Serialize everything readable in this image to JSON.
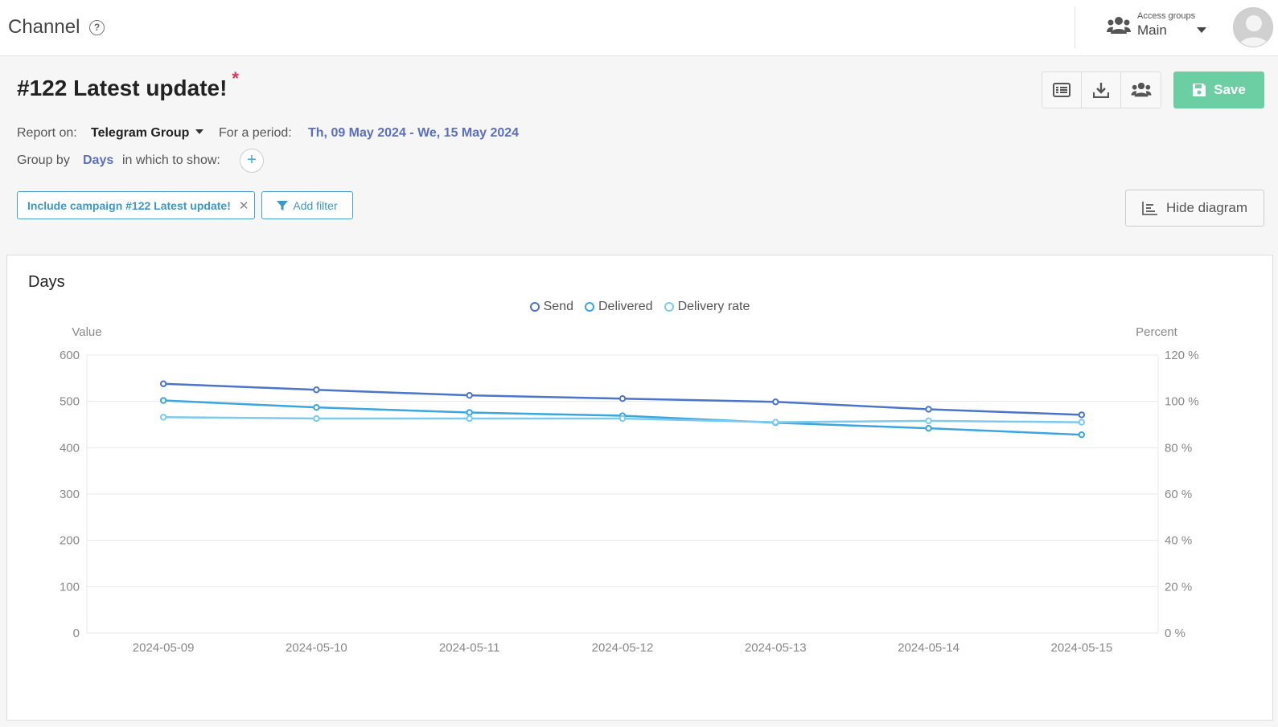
{
  "header": {
    "app_title": "Channel",
    "access_groups_label": "Access groups",
    "access_groups_value": "Main"
  },
  "report": {
    "title": "#122 Latest update!",
    "required_mark": "*",
    "save_label": "Save",
    "report_on_label": "Report on:",
    "report_on_value": "Telegram Group",
    "period_label": "For a period:",
    "period_value": "Th, 09 May 2024 - We, 15 May 2024",
    "group_by_label": "Group by",
    "group_by_value": "Days",
    "show_label": "in which to show:",
    "include_prefix": "Include campaign",
    "include_value": "#122 Latest update!",
    "add_filter_label": "Add filter",
    "hide_diagram_label": "Hide diagram"
  },
  "chart_data": {
    "type": "line",
    "title": "Days",
    "categories": [
      "2024-05-09",
      "2024-05-10",
      "2024-05-11",
      "2024-05-12",
      "2024-05-13",
      "2024-05-14",
      "2024-05-15"
    ],
    "ylabel": "Value",
    "y2label": "Percent",
    "ylim": [
      0,
      600
    ],
    "y2lim": [
      0,
      120
    ],
    "yticks": [
      "0",
      "100",
      "200",
      "300",
      "400",
      "500",
      "600"
    ],
    "y2ticks": [
      "0 %",
      "20 %",
      "40 %",
      "60 %",
      "80 %",
      "100 %",
      "120 %"
    ],
    "legend_position": "top-center",
    "grid": true,
    "series": [
      {
        "name": "Send",
        "axis": "left",
        "color": "#4c74c9",
        "values": [
          538,
          525,
          513,
          506,
          499,
          483,
          471
        ]
      },
      {
        "name": "Delivered",
        "axis": "left",
        "color": "#3aa6df",
        "values": [
          502,
          487,
          476,
          469,
          454,
          442,
          428
        ]
      },
      {
        "name": "Delivery rate",
        "axis": "right",
        "color": "#7ccaf0",
        "values": [
          93.2,
          92.6,
          92.6,
          92.6,
          91.0,
          91.6,
          91.0
        ]
      }
    ]
  }
}
